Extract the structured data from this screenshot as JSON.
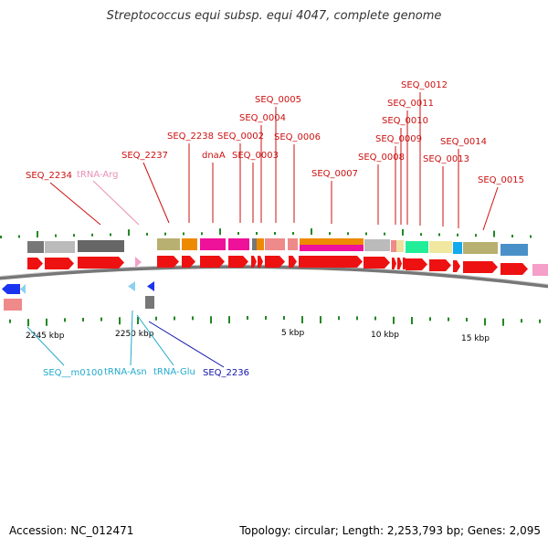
{
  "title": "Streptococcus equi subsp. equi 4047, complete genome",
  "footer": {
    "accession": "Accession: NC_012471",
    "topology": "Topology: circular; Length: 2,253,793 bp; Genes: 2,095"
  },
  "colors": {
    "cds": "#ee1111",
    "trna": "#99ccee",
    "backbone": "#777777",
    "tick": "#228822",
    "label_red": "#cc1111",
    "label_pink": "#e890b4",
    "label_cyan": "#22aacc",
    "label_blue": "#1111aa"
  },
  "axis_labels": [
    "2245 kbp",
    "2250 kbp",
    "5 kbp",
    "10 kbp",
    "15 kbp"
  ],
  "features_above": [
    {
      "label": "SEQ_2234",
      "color": "red"
    },
    {
      "label": "tRNA-Arg",
      "color": "pink"
    },
    {
      "label": "SEQ_2237",
      "color": "red"
    },
    {
      "label": "SEQ_2238",
      "color": "red"
    },
    {
      "label": "dnaA",
      "color": "red"
    },
    {
      "label": "SEQ_0002",
      "color": "red"
    },
    {
      "label": "SEQ_0003",
      "color": "red"
    },
    {
      "label": "SEQ_0004",
      "color": "red"
    },
    {
      "label": "SEQ_0005",
      "color": "red"
    },
    {
      "label": "SEQ_0006",
      "color": "red"
    },
    {
      "label": "SEQ_0007",
      "color": "red"
    },
    {
      "label": "SEQ_0008",
      "color": "red"
    },
    {
      "label": "SEQ_0009",
      "color": "red"
    },
    {
      "label": "SEQ_0010",
      "color": "red"
    },
    {
      "label": "SEQ_0011",
      "color": "red"
    },
    {
      "label": "SEQ_0012",
      "color": "red"
    },
    {
      "label": "SEQ_0013",
      "color": "red"
    },
    {
      "label": "SEQ_0014",
      "color": "red"
    },
    {
      "label": "SEQ_0015",
      "color": "red"
    }
  ],
  "features_below": [
    {
      "label": "SEQ__m0100",
      "color": "cyan"
    },
    {
      "label": "tRNA-Asn",
      "color": "cyan"
    },
    {
      "label": "tRNA-Glu",
      "color": "cyan"
    },
    {
      "label": "SEQ_2236",
      "color": "blue"
    }
  ]
}
